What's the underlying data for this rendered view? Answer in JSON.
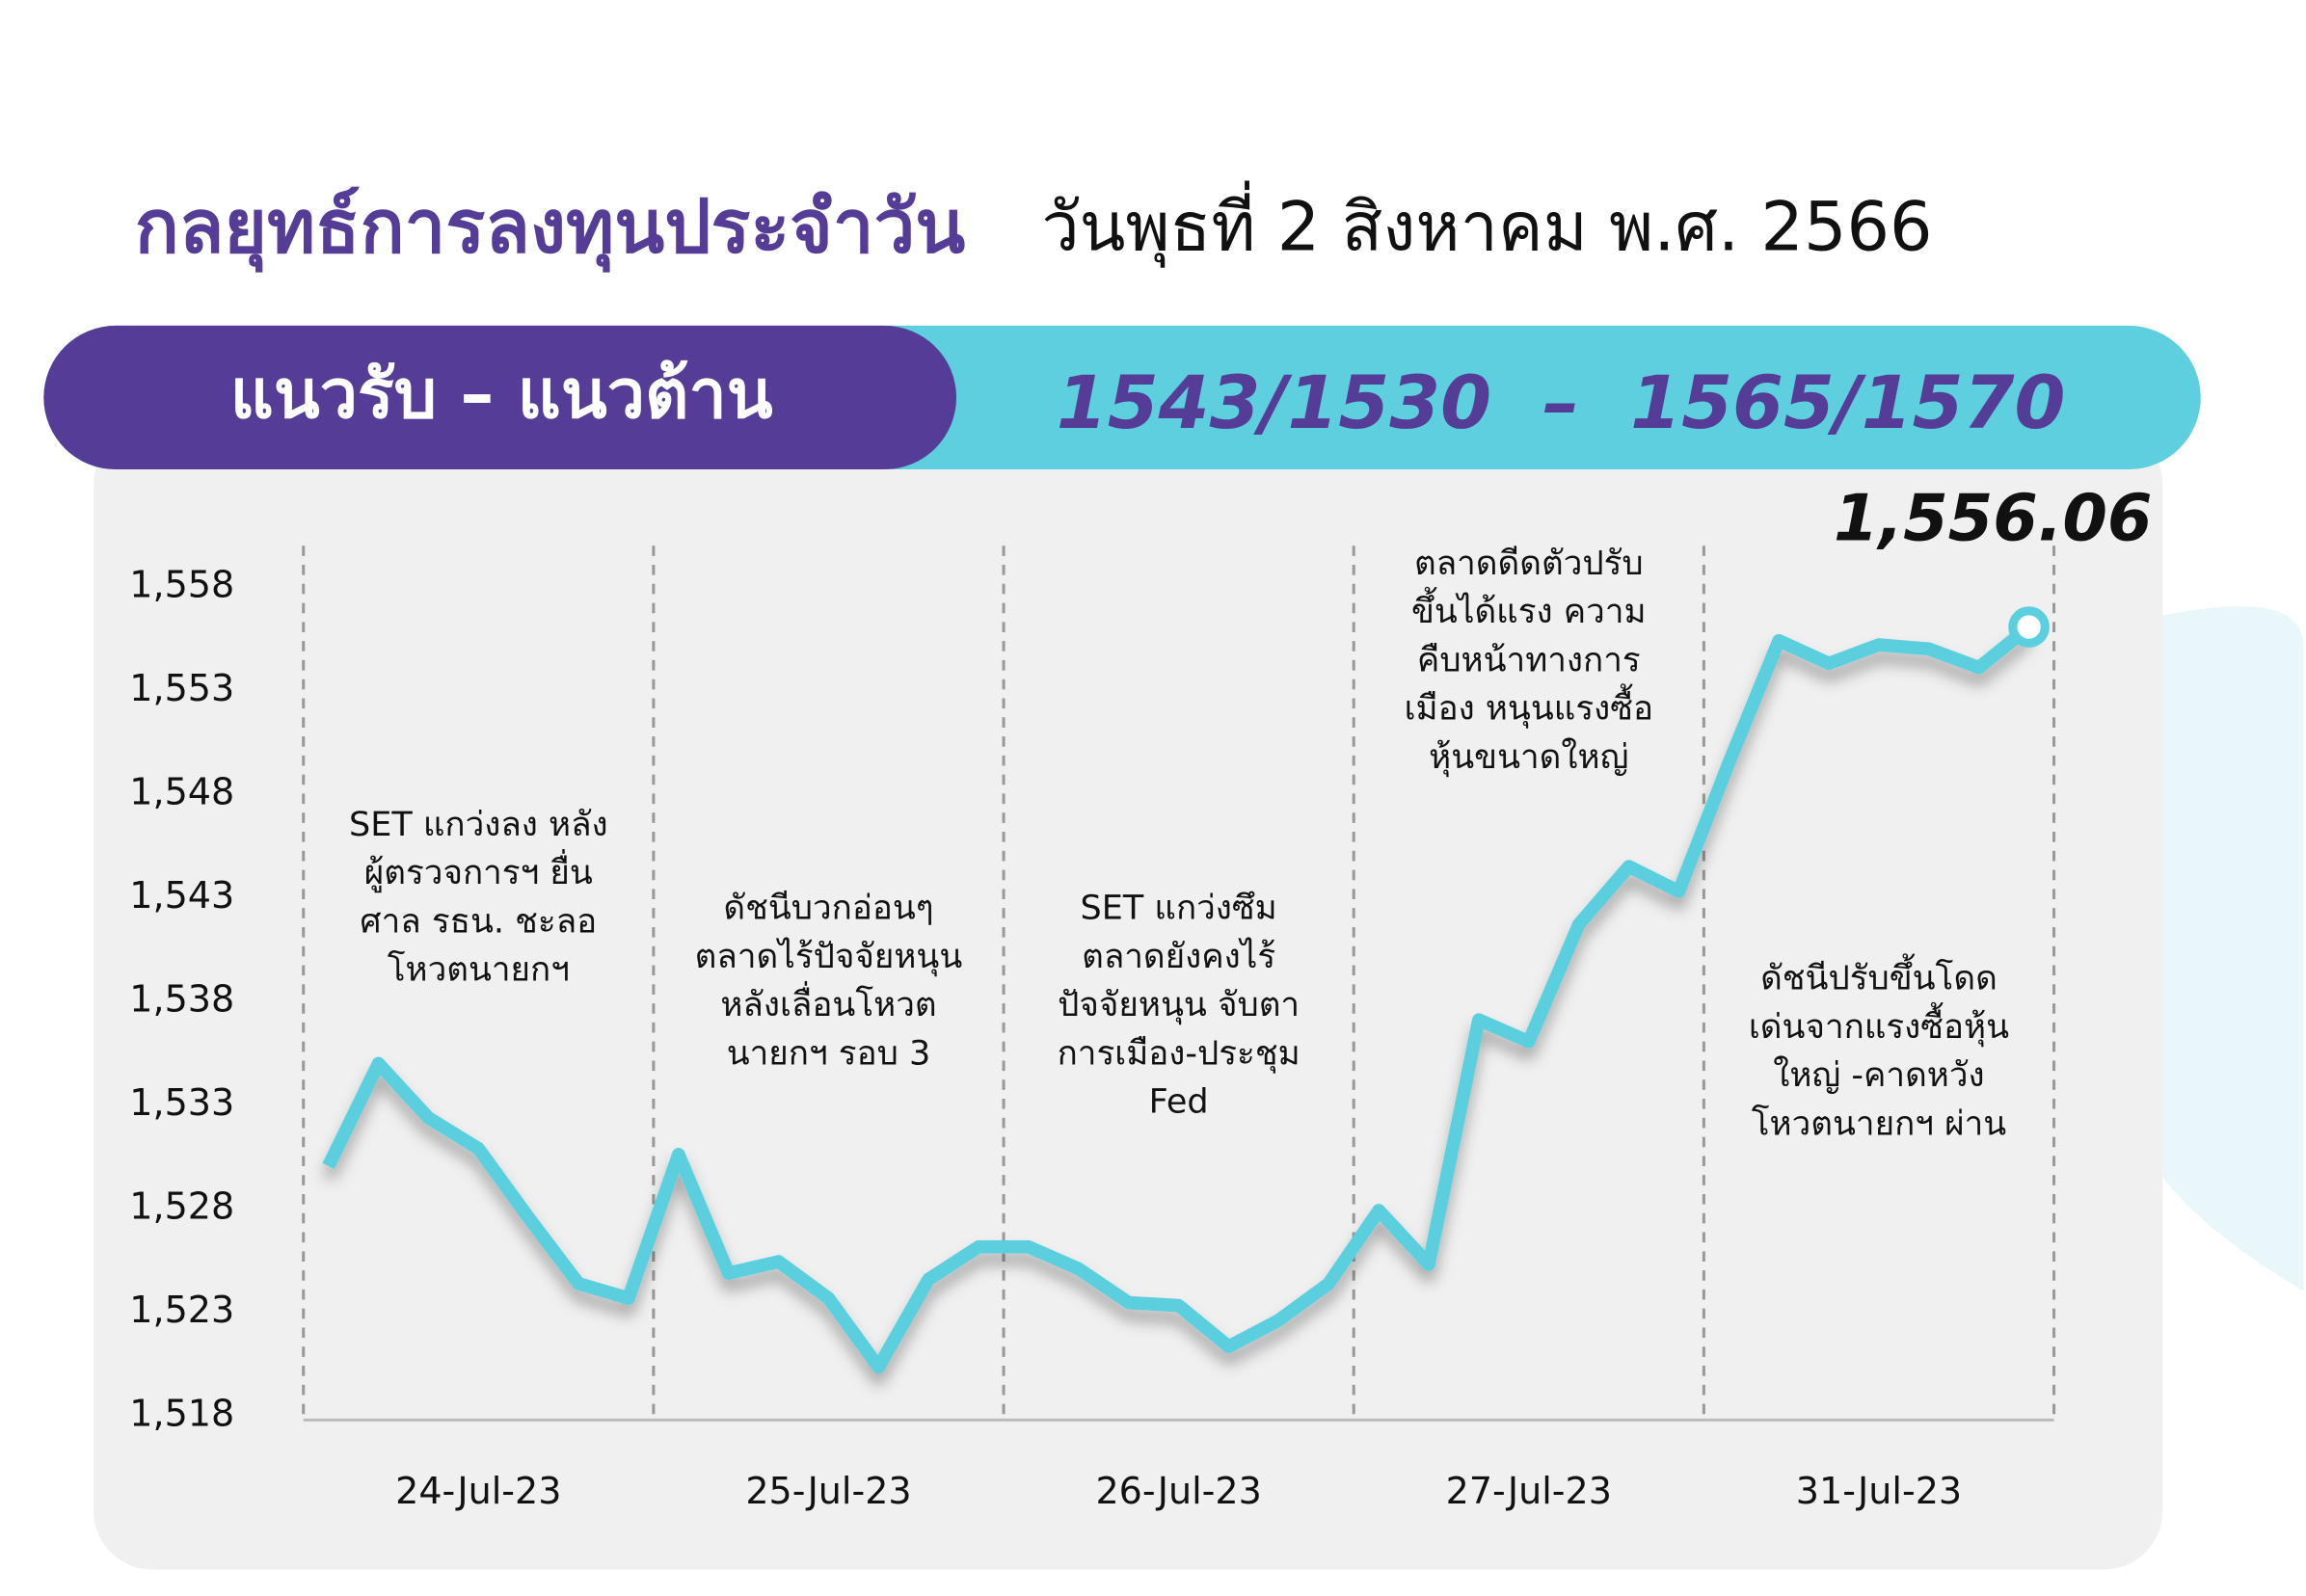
{
  "chart_data": {
    "type": "line",
    "title": "กลยุทธ์การลงทุนประจำวัน",
    "subtitle": "วันพุธที่ 2 สิงหาคม พ.ศ. 2566",
    "band_label": "แนวรับ – แนวต้าน",
    "band_levels": "1543/1530  –  1565/1570",
    "categories": [
      null,
      null,
      null,
      "24-Jul-23",
      null,
      null,
      null,
      null,
      null,
      null,
      "25-Jul-23",
      null,
      null,
      null,
      null,
      null,
      null,
      "26-Jul-23",
      null,
      null,
      null,
      null,
      null,
      null,
      "27-Jul-23",
      null,
      null,
      null,
      null,
      null,
      null,
      "31-Jul-23",
      null,
      null,
      null
    ],
    "values": [
      1530.04,
      1534.99,
      1532.37,
      1530.88,
      1527.56,
      1524.37,
      1523.66,
      1530.6,
      1524.87,
      1525.43,
      1523.66,
      1520.34,
      1524.58,
      1526.14,
      1526.14,
      1525.08,
      1523.45,
      1523.31,
      1521.33,
      1522.6,
      1524.37,
      1527.9,
      1525.3,
      1537.1,
      1536.05,
      1541.7,
      1544.5,
      1543.3,
      1549.5,
      1555.4,
      1554.3,
      1555.2,
      1555.0,
      1554.1,
      1556.06
    ],
    "value_labels": [
      null,
      null,
      null,
      null,
      null,
      null,
      null,
      null,
      null,
      null,
      null,
      null,
      null,
      null,
      null,
      null,
      null,
      null,
      null,
      null,
      null,
      null,
      null,
      null,
      null,
      null,
      null,
      null,
      null,
      null,
      null,
      null,
      null,
      null,
      "1,556.06"
    ],
    "color": "#5ccfdf",
    "ylim": [
      1518,
      1558
    ],
    "yticks": [
      {
        "value": 1518,
        "label": "1,518"
      },
      {
        "value": 1523,
        "label": "1,523"
      },
      {
        "value": 1528,
        "label": "1,528"
      },
      {
        "value": 1533,
        "label": "1,533"
      },
      {
        "value": 1538,
        "label": "1,538"
      },
      {
        "value": 1543,
        "label": "1,543"
      },
      {
        "value": 1548,
        "label": "1,548"
      },
      {
        "value": 1553,
        "label": "1,553"
      },
      {
        "value": 1558,
        "label": "1,558"
      }
    ],
    "annotations": [
      {
        "lines": [
          "SET แกว่งลง หลัง",
          "ผู้ตรวจการฯ ยื่น",
          "ศาล รธน. ชะลอ",
          "โหวตนายกฯ"
        ]
      },
      {
        "lines": [
          "ดัชนีบวกอ่อนๆ",
          "ตลาดไร้ปัจจัยหนุน",
          "หลังเลื่อนโหวต",
          "นายกฯ รอบ 3"
        ]
      },
      {
        "lines": [
          "SET แกว่งซึม",
          "ตลาดยังคงไร้",
          "ปัจจัยหนุน จับตา",
          "การเมือง-ประชุม",
          "Fed"
        ]
      },
      {
        "lines": [
          "ตลาดดีดตัวปรับ",
          "ขึ้นได้แรง ความ",
          "คืบหน้าทางการ",
          "เมือง หนุนแรงซื้อ",
          "หุ้นขนาดใหญ่"
        ]
      },
      {
        "lines": [
          "ดัชนีปรับขึ้นโดด",
          "เด่นจากแรงซื้อหุ้น",
          "ใหญ่ -คาดหวัง",
          "โหวตนายกฯ ผ่าน"
        ]
      }
    ]
  }
}
